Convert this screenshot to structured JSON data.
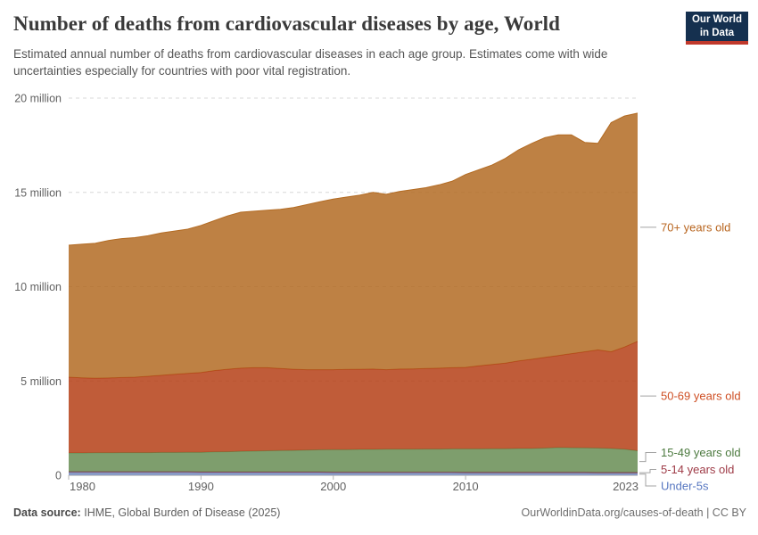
{
  "header": {
    "title": "Number of deaths from cardiovascular diseases by age, World",
    "subtitle": "Estimated annual number of deaths from cardiovascular diseases in each age group. Estimates come with wide uncertainties especially for countries with poor vital registration.",
    "logo": {
      "line1": "Our World",
      "line2": "in Data",
      "bg_color": "#15304F",
      "accent_color": "#C0392B"
    }
  },
  "chart_data": {
    "type": "area",
    "stacked": true,
    "title": "Number of deaths from cardiovascular diseases by age, World",
    "xlabel": "",
    "ylabel": "",
    "unit": "million deaths",
    "grid": "dashed-horizontal",
    "legend_position": "right",
    "xlim": [
      1980,
      2023
    ],
    "ylim": [
      0,
      20
    ],
    "xticks": [
      1980,
      1990,
      2000,
      2010,
      2023
    ],
    "yticks": [
      {
        "value": 0,
        "label": "0"
      },
      {
        "value": 5,
        "label": "5 million"
      },
      {
        "value": 10,
        "label": "10 million"
      },
      {
        "value": 15,
        "label": "15 million"
      },
      {
        "value": 20,
        "label": "20 million"
      }
    ],
    "x": [
      1980,
      1981,
      1982,
      1983,
      1984,
      1985,
      1986,
      1987,
      1988,
      1989,
      1990,
      1991,
      1992,
      1993,
      1994,
      1995,
      1996,
      1997,
      1998,
      1999,
      2000,
      2001,
      2002,
      2003,
      2004,
      2005,
      2006,
      2007,
      2008,
      2009,
      2010,
      2011,
      2012,
      2013,
      2014,
      2015,
      2016,
      2017,
      2018,
      2019,
      2020,
      2021,
      2022,
      2023
    ],
    "series": [
      {
        "name": "Under-5s",
        "fill_color": "#7589BC",
        "label_color": "#5777C1",
        "values": [
          0.15,
          0.15,
          0.15,
          0.15,
          0.15,
          0.15,
          0.15,
          0.15,
          0.15,
          0.15,
          0.14,
          0.14,
          0.14,
          0.14,
          0.14,
          0.14,
          0.14,
          0.14,
          0.14,
          0.14,
          0.13,
          0.13,
          0.13,
          0.13,
          0.13,
          0.13,
          0.13,
          0.13,
          0.13,
          0.13,
          0.12,
          0.12,
          0.12,
          0.12,
          0.12,
          0.12,
          0.12,
          0.12,
          0.12,
          0.12,
          0.11,
          0.11,
          0.11,
          0.11
        ]
      },
      {
        "name": "5-14 years old",
        "fill_color": "#884652",
        "label_color": "#9E3A46",
        "values": [
          0.05,
          0.05,
          0.05,
          0.05,
          0.05,
          0.05,
          0.05,
          0.05,
          0.05,
          0.05,
          0.05,
          0.05,
          0.05,
          0.05,
          0.05,
          0.05,
          0.05,
          0.05,
          0.05,
          0.05,
          0.05,
          0.05,
          0.05,
          0.05,
          0.05,
          0.05,
          0.05,
          0.05,
          0.05,
          0.05,
          0.05,
          0.05,
          0.05,
          0.05,
          0.05,
          0.05,
          0.05,
          0.05,
          0.05,
          0.05,
          0.05,
          0.05,
          0.05,
          0.05
        ]
      },
      {
        "name": "15-49 years old",
        "fill_color": "#678D54",
        "label_color": "#4C7A3F",
        "values": [
          0.98,
          0.98,
          0.99,
          0.99,
          1.0,
          1.0,
          1.0,
          1.01,
          1.01,
          1.02,
          1.03,
          1.05,
          1.06,
          1.08,
          1.09,
          1.11,
          1.12,
          1.13,
          1.15,
          1.16,
          1.18,
          1.18,
          1.19,
          1.19,
          1.2,
          1.2,
          1.2,
          1.21,
          1.21,
          1.22,
          1.23,
          1.23,
          1.24,
          1.24,
          1.25,
          1.25,
          1.27,
          1.3,
          1.29,
          1.28,
          1.28,
          1.26,
          1.22,
          1.14
        ]
      },
      {
        "name": "50-69 years old",
        "fill_color": "#B53F16",
        "label_color": "#CE4E23",
        "values": [
          4.02,
          3.99,
          3.96,
          3.97,
          3.98,
          4.0,
          4.05,
          4.09,
          4.14,
          4.18,
          4.23,
          4.31,
          4.37,
          4.41,
          4.42,
          4.4,
          4.35,
          4.3,
          4.26,
          4.25,
          4.24,
          4.25,
          4.25,
          4.26,
          4.22,
          4.25,
          4.26,
          4.27,
          4.29,
          4.3,
          4.32,
          4.4,
          4.46,
          4.54,
          4.64,
          4.73,
          4.81,
          4.88,
          4.99,
          5.1,
          5.21,
          5.13,
          5.42,
          5.8
        ]
      },
      {
        "name": "70+ years old",
        "fill_color": "#B36B23",
        "label_color": "#B8651F",
        "values": [
          7.0,
          7.08,
          7.15,
          7.29,
          7.37,
          7.4,
          7.45,
          7.55,
          7.6,
          7.65,
          7.8,
          7.95,
          8.13,
          8.27,
          8.3,
          8.35,
          8.44,
          8.58,
          8.75,
          8.9,
          9.05,
          9.14,
          9.23,
          9.37,
          9.3,
          9.42,
          9.51,
          9.59,
          9.72,
          9.9,
          10.23,
          10.4,
          10.58,
          10.85,
          11.2,
          11.45,
          11.65,
          11.7,
          11.6,
          11.1,
          10.95,
          12.15,
          12.25,
          12.1
        ]
      }
    ]
  },
  "footer": {
    "source_label": "Data source:",
    "source_value": "IHME, Global Burden of Disease (2025)",
    "url": "OurWorldinData.org/causes-of-death",
    "divider": "|",
    "license": "CC BY"
  }
}
